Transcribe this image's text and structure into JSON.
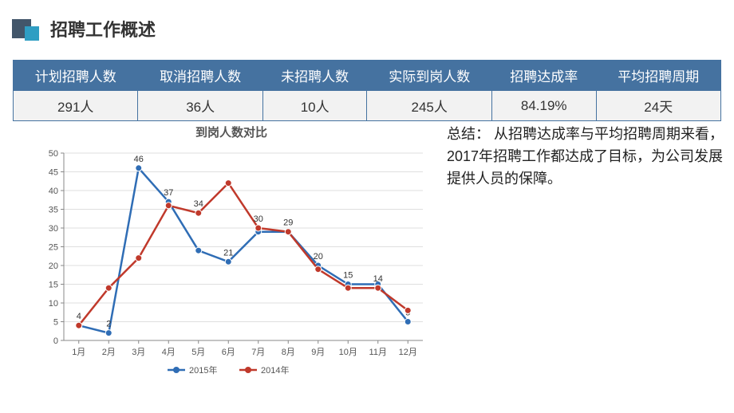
{
  "colors": {
    "square_dark": "#42566a",
    "square_light": "#2f9ec3",
    "table_header_bg": "#4572a0",
    "table_border": "#4572a0",
    "table_row_bg": "#f2f2f2",
    "chart_line_2015": "#2f6db5",
    "chart_line_2014": "#c0392b",
    "chart_marker_2015": "#2f6db5",
    "chart_marker_2014": "#c0392b",
    "chart_axis": "#888888",
    "chart_grid": "#bfbfbf",
    "chart_text": "#555555"
  },
  "title": "招聘工作概述",
  "table": {
    "headers": [
      "计划招聘人数",
      "取消招聘人数",
      "未招聘人数",
      "实际到岗人数",
      "招聘达成率",
      "平均招聘周期"
    ],
    "values": [
      "291人",
      "36人",
      "10人",
      "245人",
      "84.19%",
      "24天"
    ]
  },
  "chart": {
    "title": "到岗人数对比",
    "categories": [
      "1月",
      "2月",
      "3月",
      "4月",
      "5月",
      "6月",
      "7月",
      "8月",
      "9月",
      "10月",
      "11月",
      "12月"
    ],
    "ylim": [
      0,
      50
    ],
    "ytick_step": 5,
    "series": [
      {
        "name": "2015年",
        "color": "#2f6db5",
        "marker": "circle",
        "width": 2.5,
        "data": [
          4,
          2,
          46,
          37,
          24,
          21,
          29,
          29,
          20,
          15,
          15,
          5
        ],
        "labels": [
          "4",
          "2",
          "46",
          "37",
          "",
          "21",
          "",
          "",
          "20",
          "15",
          "",
          "5"
        ]
      },
      {
        "name": "2014年",
        "color": "#c0392b",
        "marker": "circle",
        "width": 2.5,
        "data": [
          4,
          14,
          22,
          36,
          34,
          42,
          30,
          29,
          19,
          14,
          14,
          8
        ],
        "labels": [
          "",
          "",
          "",
          "",
          "34",
          "",
          "30",
          "29",
          "",
          "",
          "14",
          ""
        ]
      }
    ],
    "legend_pos": "bottom",
    "plot_fontsize": 11,
    "axis_fontsize": 11
  },
  "summary": {
    "heading": "总结：",
    "body": "从招聘达成率与平均招聘周期来看，2017年招聘工作都达成了目标，为公司发展提供人员的保障。"
  }
}
